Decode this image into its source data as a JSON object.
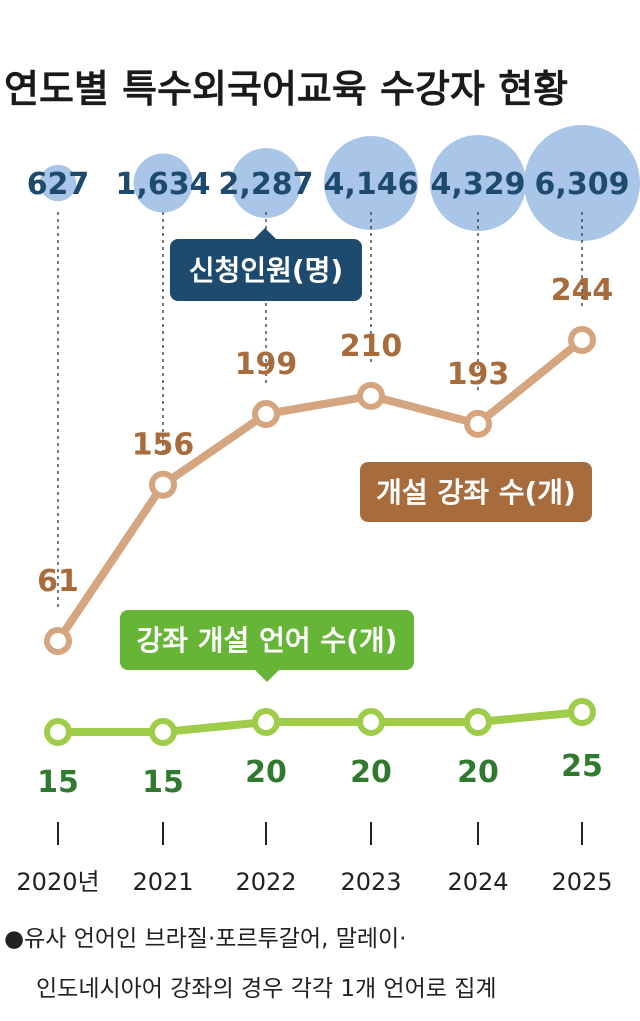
{
  "title": "연도별 특수외국어교육 수강자 현황",
  "chart_data": {
    "type": "line",
    "categories": [
      "2020년",
      "2021",
      "2022",
      "2023",
      "2024",
      "2025"
    ],
    "applicants": {
      "name": "신청인원(명)",
      "values": [
        627,
        1634,
        2287,
        4146,
        4329,
        6309
      ],
      "labels": [
        "627",
        "1,634",
        "2,287",
        "4,146",
        "4,329",
        "6,309"
      ]
    },
    "series": [
      {
        "name": "개설 강좌 수(개)",
        "values": [
          61,
          156,
          199,
          210,
          193,
          244
        ]
      },
      {
        "name": "강좌 개설 언어 수(개)",
        "values": [
          15,
          15,
          20,
          20,
          20,
          25
        ]
      }
    ]
  },
  "colors": {
    "bubble": "#a9c6e8",
    "applicant_badge": "#1e4a6e",
    "course_line": "#d4a57f",
    "course_badge": "#a86b3c",
    "lang_line": "#9fcd4a",
    "lang_badge": "#67b536",
    "lang_text": "#2f7a2f"
  },
  "note": {
    "line1": "●유사 언어인 브라질·포르투갈어, 말레이·",
    "line2": "인도네시아어 강좌의 경우 각각 1개 언어로 집계"
  }
}
